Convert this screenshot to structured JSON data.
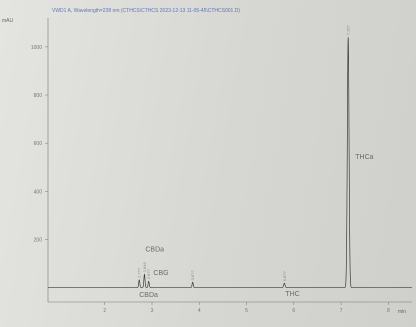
{
  "chart_data": {
    "type": "line",
    "header": "VWD1 A, Wavelength=228 nm (CTHCS\\CTHCS 2023-12-13 11-05-45\\CTHCS001.D)",
    "yunit": "mAU",
    "xunit": "min",
    "xlim": [
      0.8,
      8.5
    ],
    "ylim": [
      -60,
      1120
    ],
    "xticks": [
      2,
      3,
      4,
      5,
      6,
      7,
      8
    ],
    "yticks": [
      200,
      400,
      600,
      800,
      1000
    ],
    "grid": false,
    "baseline": 0,
    "peaks": [
      {
        "name": "",
        "rt": 2.73,
        "height": 32,
        "width": 0.012
      },
      {
        "name": "",
        "rt": 2.84,
        "height": 55,
        "width": 0.012
      },
      {
        "name": "",
        "rt": 2.93,
        "height": 26,
        "width": 0.012
      },
      {
        "name": "",
        "rt": 3.86,
        "height": 22,
        "width": 0.012
      },
      {
        "name": "",
        "rt": 5.8,
        "height": 18,
        "width": 0.015
      },
      {
        "name": "",
        "rt": 7.15,
        "height": 1040,
        "width": 0.018
      }
    ],
    "annotations": [
      {
        "text": "CBDa",
        "x": 2.86,
        "y": 150
      },
      {
        "text": "CBG",
        "x": 3.03,
        "y": 52
      },
      {
        "text": "CBDa",
        "x": 2.73,
        "y": -40
      },
      {
        "text": "THC",
        "x": 5.82,
        "y": -35
      },
      {
        "text": "THCa",
        "x": 7.3,
        "y": 535
      }
    ],
    "rt_labels": [
      "2.7??",
      "2.846",
      "2.9??",
      "3.8??",
      "5.8??",
      "7.15?"
    ]
  }
}
